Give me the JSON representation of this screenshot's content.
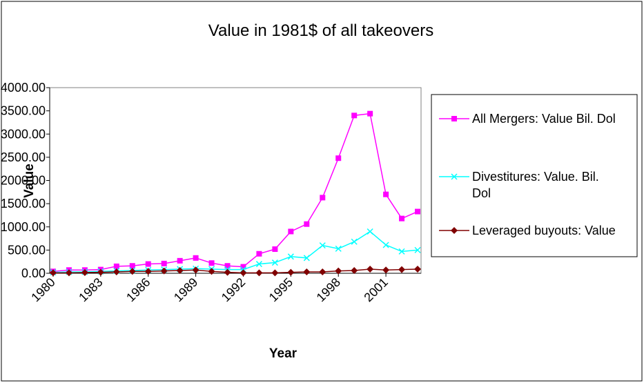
{
  "chart_data": {
    "type": "line",
    "title": "Value in 1981$ of all takeovers",
    "x_label": "Year",
    "y_label": "Value",
    "categories": [
      "1980",
      null,
      null,
      "1983",
      null,
      null,
      "1986",
      null,
      null,
      "1989",
      null,
      null,
      "1992",
      null,
      null,
      "1995",
      null,
      null,
      "1998",
      null,
      null,
      "2001",
      null,
      null
    ],
    "series": [
      {
        "name": "All Mergers: Value Bil. Dol",
        "color": "#ff00ff",
        "marker": "square",
        "values": [
          40,
          70,
          70,
          80,
          150,
          160,
          200,
          210,
          270,
          330,
          220,
          160,
          140,
          420,
          520,
          900,
          1060,
          1630,
          2480,
          3400,
          3440,
          1700,
          1180,
          1330
        ]
      },
      {
        "name": "Divestitures: Value. Bil. Dol",
        "color": "#00ffff",
        "marker": "x",
        "values": [
          20,
          30,
          30,
          40,
          50,
          60,
          70,
          80,
          90,
          100,
          90,
          80,
          80,
          200,
          230,
          360,
          330,
          600,
          530,
          680,
          900,
          610,
          470,
          500
        ]
      },
      {
        "name": "Leveraged buyouts: Value",
        "color": "#800000",
        "marker": "diamond",
        "values": [
          10,
          10,
          15,
          20,
          30,
          40,
          40,
          50,
          60,
          70,
          40,
          20,
          10,
          10,
          10,
          20,
          30,
          30,
          50,
          60,
          90,
          70,
          80,
          90
        ]
      }
    ],
    "ylim": [
      0,
      4000
    ],
    "yticks": [
      {
        "value": 0,
        "label": "0.00"
      },
      {
        "value": 500,
        "label": "500.00"
      },
      {
        "value": 1000,
        "label": "1000.00"
      },
      {
        "value": 1500,
        "label": "1500.00"
      },
      {
        "value": 2000,
        "label": "2000.00"
      },
      {
        "value": 2500,
        "label": "2500.00"
      },
      {
        "value": 3000,
        "label": "3000.00"
      },
      {
        "value": 3500,
        "label": "3500.00"
      },
      {
        "value": 4000,
        "label": "4000.00"
      }
    ],
    "legend": "right"
  }
}
